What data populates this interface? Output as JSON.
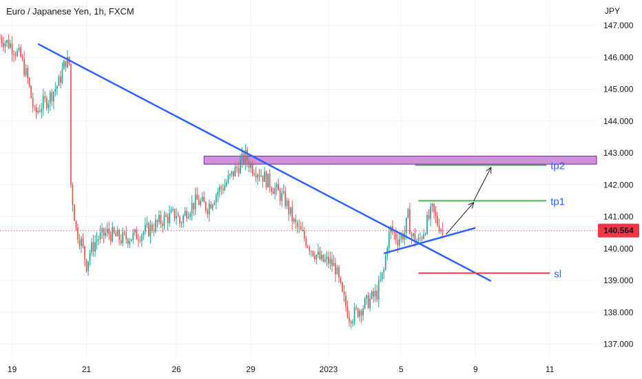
{
  "chart_data": {
    "type": "candlestick",
    "title": "Euro / Japanese Yen, 1h, FXCM",
    "currency_label": "JPY",
    "ylim": [
      136.6,
      147.8
    ],
    "y_ticks": [
      "137.000",
      "138.000",
      "139.000",
      "140.000",
      "141.000",
      "142.000",
      "143.000",
      "144.000",
      "145.000",
      "146.000",
      "147.000"
    ],
    "y_tick_values": [
      137,
      138,
      139,
      140,
      141,
      142,
      143,
      144,
      145,
      146,
      147
    ],
    "x_ticks": [
      "19",
      "21",
      "26",
      "29",
      "2023",
      "5",
      "9",
      "11"
    ],
    "x_tick_index": [
      7,
      50,
      102,
      145,
      190,
      232,
      275,
      318
    ],
    "x_index_range": [
      0,
      345
    ],
    "last_price": {
      "label": "140.564",
      "value": 140.564
    },
    "grid": true,
    "colors": {
      "up": "#26a69a",
      "down": "#ef5350",
      "trendline": "#2962ff",
      "zone_fill": "#ce93d8",
      "zone_border": "#7b1fa2",
      "tp": "#4caf50",
      "sl": "#f23645",
      "price_line": "#f23645"
    },
    "price_path": [
      [
        0,
        146.6
      ],
      [
        6,
        146.4
      ],
      [
        12,
        146.0
      ],
      [
        16,
        145.3
      ],
      [
        20,
        144.2
      ],
      [
        24,
        144.5
      ],
      [
        28,
        144.7
      ],
      [
        34,
        145.2
      ],
      [
        38,
        145.9
      ],
      [
        40,
        145.8
      ],
      [
        41,
        142.0
      ],
      [
        42,
        141.5
      ],
      [
        44,
        140.6
      ],
      [
        47,
        140.2
      ],
      [
        50,
        139.5
      ],
      [
        52,
        139.9
      ],
      [
        56,
        140.3
      ],
      [
        62,
        140.5
      ],
      [
        70,
        140.3
      ],
      [
        78,
        140.4
      ],
      [
        86,
        140.6
      ],
      [
        94,
        140.9
      ],
      [
        102,
        141.1
      ],
      [
        104,
        140.8
      ],
      [
        108,
        141.2
      ],
      [
        114,
        141.5
      ],
      [
        120,
        141.3
      ],
      [
        126,
        141.8
      ],
      [
        130,
        142.0
      ],
      [
        134,
        142.3
      ],
      [
        138,
        142.6
      ],
      [
        142,
        142.9
      ],
      [
        145,
        142.6
      ],
      [
        150,
        142.4
      ],
      [
        155,
        142.1
      ],
      [
        160,
        141.8
      ],
      [
        165,
        141.5
      ],
      [
        170,
        140.8
      ],
      [
        174,
        140.5
      ],
      [
        180,
        140.0
      ],
      [
        186,
        139.6
      ],
      [
        190,
        139.6
      ],
      [
        194,
        139.4
      ],
      [
        198,
        138.5
      ],
      [
        200,
        138.2
      ],
      [
        202,
        137.9
      ],
      [
        204,
        137.9
      ],
      [
        208,
        138.1
      ],
      [
        214,
        138.4
      ],
      [
        218,
        138.6
      ],
      [
        222,
        139.3
      ],
      [
        224,
        140.2
      ],
      [
        226,
        140.6
      ],
      [
        230,
        140.3
      ],
      [
        234,
        140.5
      ],
      [
        236,
        141.0
      ],
      [
        238,
        140.4
      ],
      [
        242,
        140.2
      ],
      [
        246,
        140.7
      ],
      [
        250,
        141.2
      ],
      [
        253,
        140.8
      ],
      [
        256,
        140.6
      ]
    ],
    "annotations": {
      "resistance_zone": {
        "x1": 118,
        "x2": 345,
        "y_low": 142.65,
        "y_high": 142.9
      },
      "trendline_main": {
        "x1": 22,
        "y1": 146.42,
        "x2": 284,
        "y2": 138.98
      },
      "trendline_support": {
        "x1": 222,
        "y1": 139.85,
        "x2": 275,
        "y2": 140.65
      },
      "tp2": {
        "label": "tp2",
        "x1": 240,
        "x2": 316,
        "y": 142.62
      },
      "tp1": {
        "label": "tp1",
        "x1": 242,
        "x2": 316,
        "y": 141.5
      },
      "sl": {
        "label": "sl",
        "x1": 242,
        "x2": 318,
        "y": 139.23
      },
      "arrow_up": {
        "x1": 258,
        "y1": 140.45,
        "x2": 274,
        "y2": 141.45
      },
      "arrow_tp2": {
        "x1": 274,
        "y1": 141.5,
        "x2": 284,
        "y2": 142.55
      }
    }
  }
}
